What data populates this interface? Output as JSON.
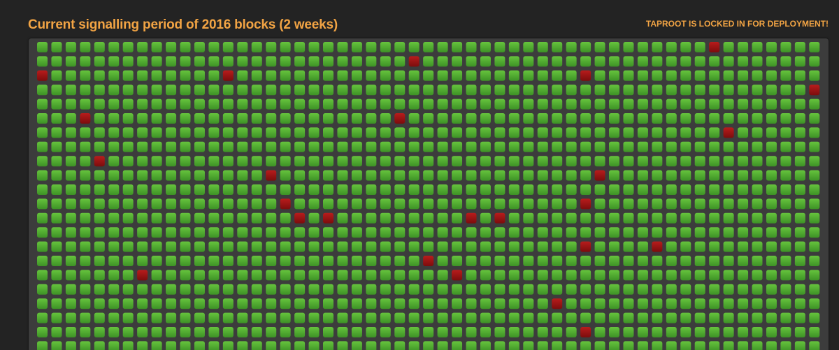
{
  "header": {
    "title": "Current signalling period of 2016 blocks (2 weeks)",
    "status": "TAPROOT IS LOCKED IN FOR DEPLOYMENT!"
  },
  "signal_grid": {
    "rows": [
      [
        1,
        1,
        1,
        1,
        1,
        1,
        1,
        1,
        1,
        1,
        1,
        1,
        1,
        1,
        1,
        1,
        1,
        1,
        1,
        1,
        1,
        1,
        1,
        1,
        1,
        1,
        1,
        1,
        1,
        1,
        1,
        1,
        1,
        1,
        1,
        1,
        1,
        1,
        1,
        1,
        1,
        1,
        1,
        1,
        1,
        1,
        1,
        0,
        1,
        1,
        1,
        1,
        1,
        1,
        1
      ],
      [
        1,
        1,
        1,
        1,
        1,
        1,
        1,
        1,
        1,
        1,
        1,
        1,
        1,
        1,
        1,
        1,
        1,
        1,
        1,
        1,
        1,
        1,
        1,
        1,
        1,
        1,
        0,
        1,
        1,
        1,
        1,
        1,
        1,
        1,
        1,
        1,
        1,
        1,
        1,
        1,
        1,
        1,
        1,
        1,
        1,
        1,
        1,
        1,
        1,
        1,
        1,
        1,
        1,
        1,
        1
      ],
      [
        0,
        1,
        1,
        1,
        1,
        1,
        1,
        1,
        1,
        1,
        1,
        1,
        1,
        0,
        1,
        1,
        1,
        1,
        1,
        1,
        1,
        1,
        1,
        1,
        1,
        1,
        1,
        1,
        1,
        1,
        1,
        1,
        1,
        1,
        1,
        1,
        1,
        1,
        0,
        1,
        1,
        1,
        1,
        1,
        1,
        1,
        1,
        1,
        1,
        1,
        1,
        1,
        1,
        1,
        1
      ],
      [
        1,
        1,
        1,
        1,
        1,
        1,
        1,
        1,
        1,
        1,
        1,
        1,
        1,
        1,
        1,
        1,
        1,
        1,
        1,
        1,
        1,
        1,
        1,
        1,
        1,
        1,
        1,
        1,
        1,
        1,
        1,
        1,
        1,
        1,
        1,
        1,
        1,
        1,
        1,
        1,
        1,
        1,
        1,
        1,
        1,
        1,
        1,
        1,
        1,
        1,
        1,
        1,
        1,
        1,
        0
      ],
      [
        1,
        1,
        1,
        1,
        1,
        1,
        1,
        1,
        1,
        1,
        1,
        1,
        1,
        1,
        1,
        1,
        1,
        1,
        1,
        1,
        1,
        1,
        1,
        1,
        1,
        1,
        1,
        1,
        1,
        1,
        1,
        1,
        1,
        1,
        1,
        1,
        1,
        1,
        1,
        1,
        1,
        1,
        1,
        1,
        1,
        1,
        1,
        1,
        1,
        1,
        1,
        1,
        1,
        1,
        1
      ],
      [
        1,
        1,
        1,
        0,
        1,
        1,
        1,
        1,
        1,
        1,
        1,
        1,
        1,
        1,
        1,
        1,
        1,
        1,
        1,
        1,
        1,
        1,
        1,
        1,
        1,
        0,
        1,
        1,
        1,
        1,
        1,
        1,
        1,
        1,
        1,
        1,
        1,
        1,
        1,
        1,
        1,
        1,
        1,
        1,
        1,
        1,
        1,
        1,
        1,
        1,
        1,
        1,
        1,
        1,
        1
      ],
      [
        1,
        1,
        1,
        1,
        1,
        1,
        1,
        1,
        1,
        1,
        1,
        1,
        1,
        1,
        1,
        1,
        1,
        1,
        1,
        1,
        1,
        1,
        1,
        1,
        1,
        1,
        1,
        1,
        1,
        1,
        1,
        1,
        1,
        1,
        1,
        1,
        1,
        1,
        1,
        1,
        1,
        1,
        1,
        1,
        1,
        1,
        1,
        1,
        0,
        1,
        1,
        1,
        1,
        1,
        1
      ],
      [
        1,
        1,
        1,
        1,
        1,
        1,
        1,
        1,
        1,
        1,
        1,
        1,
        1,
        1,
        1,
        1,
        1,
        1,
        1,
        1,
        1,
        1,
        1,
        1,
        1,
        1,
        1,
        1,
        1,
        1,
        1,
        1,
        1,
        1,
        1,
        1,
        1,
        1,
        1,
        1,
        1,
        1,
        1,
        1,
        1,
        1,
        1,
        1,
        1,
        1,
        1,
        1,
        1,
        1,
        1
      ],
      [
        1,
        1,
        1,
        1,
        0,
        1,
        1,
        1,
        1,
        1,
        1,
        1,
        1,
        1,
        1,
        1,
        1,
        1,
        1,
        1,
        1,
        1,
        1,
        1,
        1,
        1,
        1,
        1,
        1,
        1,
        1,
        1,
        1,
        1,
        1,
        1,
        1,
        1,
        1,
        1,
        1,
        1,
        1,
        1,
        1,
        1,
        1,
        1,
        1,
        1,
        1,
        1,
        1,
        1,
        1
      ],
      [
        1,
        1,
        1,
        1,
        1,
        1,
        1,
        1,
        1,
        1,
        1,
        1,
        1,
        1,
        1,
        1,
        0,
        1,
        1,
        1,
        1,
        1,
        1,
        1,
        1,
        1,
        1,
        1,
        1,
        1,
        1,
        1,
        1,
        1,
        1,
        1,
        1,
        1,
        1,
        0,
        1,
        1,
        1,
        1,
        1,
        1,
        1,
        1,
        1,
        1,
        1,
        1,
        1,
        1,
        1
      ],
      [
        1,
        1,
        1,
        1,
        1,
        1,
        1,
        1,
        1,
        1,
        1,
        1,
        1,
        1,
        1,
        1,
        1,
        1,
        1,
        1,
        1,
        1,
        1,
        1,
        1,
        1,
        1,
        1,
        1,
        1,
        1,
        1,
        1,
        1,
        1,
        1,
        1,
        1,
        1,
        1,
        1,
        1,
        1,
        1,
        1,
        1,
        1,
        1,
        1,
        1,
        1,
        1,
        1,
        1,
        1
      ],
      [
        1,
        1,
        1,
        1,
        1,
        1,
        1,
        1,
        1,
        1,
        1,
        1,
        1,
        1,
        1,
        1,
        1,
        0,
        1,
        1,
        1,
        1,
        1,
        1,
        1,
        1,
        1,
        1,
        1,
        1,
        1,
        1,
        1,
        1,
        1,
        1,
        1,
        1,
        0,
        1,
        1,
        1,
        1,
        1,
        1,
        1,
        1,
        1,
        1,
        1,
        1,
        1,
        1,
        1,
        1
      ],
      [
        1,
        1,
        1,
        1,
        1,
        1,
        1,
        1,
        1,
        1,
        1,
        1,
        1,
        1,
        1,
        1,
        1,
        1,
        0,
        1,
        0,
        1,
        1,
        1,
        1,
        1,
        1,
        1,
        1,
        1,
        0,
        1,
        0,
        1,
        1,
        1,
        1,
        1,
        1,
        1,
        1,
        1,
        1,
        1,
        1,
        1,
        1,
        1,
        1,
        1,
        1,
        1,
        1,
        1,
        1
      ],
      [
        1,
        1,
        1,
        1,
        1,
        1,
        1,
        1,
        1,
        1,
        1,
        1,
        1,
        1,
        1,
        1,
        1,
        1,
        1,
        1,
        1,
        1,
        1,
        1,
        1,
        1,
        1,
        1,
        1,
        1,
        1,
        1,
        1,
        1,
        1,
        1,
        1,
        1,
        1,
        1,
        1,
        1,
        1,
        1,
        1,
        1,
        1,
        1,
        1,
        1,
        1,
        1,
        1,
        1,
        1
      ],
      [
        1,
        1,
        1,
        1,
        1,
        1,
        1,
        1,
        1,
        1,
        1,
        1,
        1,
        1,
        1,
        1,
        1,
        1,
        1,
        1,
        1,
        1,
        1,
        1,
        1,
        1,
        1,
        1,
        1,
        1,
        1,
        1,
        1,
        1,
        1,
        1,
        1,
        1,
        0,
        1,
        1,
        1,
        1,
        0,
        1,
        1,
        1,
        1,
        1,
        1,
        1,
        1,
        1,
        1,
        1
      ],
      [
        1,
        1,
        1,
        1,
        1,
        1,
        1,
        1,
        1,
        1,
        1,
        1,
        1,
        1,
        1,
        1,
        1,
        1,
        1,
        1,
        1,
        1,
        1,
        1,
        1,
        1,
        1,
        0,
        1,
        1,
        1,
        1,
        1,
        1,
        1,
        1,
        1,
        1,
        1,
        1,
        1,
        1,
        1,
        1,
        1,
        1,
        1,
        1,
        1,
        1,
        1,
        1,
        1,
        1,
        1
      ],
      [
        1,
        1,
        1,
        1,
        1,
        1,
        1,
        0,
        1,
        1,
        1,
        1,
        1,
        1,
        1,
        1,
        1,
        1,
        1,
        1,
        1,
        1,
        1,
        1,
        1,
        1,
        1,
        1,
        1,
        0,
        1,
        1,
        1,
        1,
        1,
        1,
        1,
        1,
        1,
        1,
        1,
        1,
        1,
        1,
        1,
        1,
        1,
        1,
        1,
        1,
        1,
        1,
        1,
        1,
        1
      ],
      [
        1,
        1,
        1,
        1,
        1,
        1,
        1,
        1,
        1,
        1,
        1,
        1,
        1,
        1,
        1,
        1,
        1,
        1,
        1,
        1,
        1,
        1,
        1,
        1,
        1,
        1,
        1,
        1,
        1,
        1,
        1,
        1,
        1,
        1,
        1,
        1,
        1,
        1,
        1,
        1,
        1,
        1,
        1,
        1,
        1,
        1,
        1,
        1,
        1,
        1,
        1,
        1,
        1,
        1,
        1
      ],
      [
        1,
        1,
        1,
        1,
        1,
        1,
        1,
        1,
        1,
        1,
        1,
        1,
        1,
        1,
        1,
        1,
        1,
        1,
        1,
        1,
        1,
        1,
        1,
        1,
        1,
        1,
        1,
        1,
        1,
        1,
        1,
        1,
        1,
        1,
        1,
        1,
        0,
        1,
        1,
        1,
        1,
        1,
        1,
        1,
        1,
        1,
        1,
        1,
        1,
        1,
        1,
        1,
        1,
        1,
        1
      ],
      [
        1,
        1,
        1,
        1,
        1,
        1,
        1,
        1,
        1,
        1,
        1,
        1,
        1,
        1,
        1,
        1,
        1,
        1,
        1,
        1,
        1,
        1,
        1,
        1,
        1,
        1,
        1,
        1,
        1,
        1,
        1,
        1,
        1,
        1,
        1,
        1,
        1,
        1,
        1,
        1,
        1,
        1,
        1,
        1,
        1,
        1,
        1,
        1,
        1,
        1,
        1,
        1,
        1,
        1,
        1
      ],
      [
        1,
        1,
        1,
        1,
        1,
        1,
        1,
        1,
        1,
        1,
        1,
        1,
        1,
        1,
        1,
        1,
        1,
        1,
        1,
        1,
        1,
        1,
        1,
        1,
        1,
        1,
        1,
        1,
        1,
        1,
        1,
        1,
        1,
        1,
        1,
        1,
        1,
        1,
        0,
        1,
        1,
        1,
        1,
        1,
        1,
        1,
        1,
        1,
        1,
        1,
        1,
        1,
        1,
        1,
        1
      ],
      [
        1,
        1,
        1,
        1,
        1,
        1,
        1,
        1,
        1,
        1,
        1,
        1,
        1,
        1,
        1,
        1,
        1,
        1,
        1,
        1,
        1,
        1,
        1,
        1,
        1,
        1,
        1,
        1,
        1,
        1,
        1,
        1,
        1,
        1,
        1,
        1,
        1,
        1,
        1,
        1,
        1,
        1,
        1,
        1,
        1,
        1,
        1,
        1,
        1,
        1,
        1,
        1,
        1,
        1,
        1
      ]
    ]
  }
}
